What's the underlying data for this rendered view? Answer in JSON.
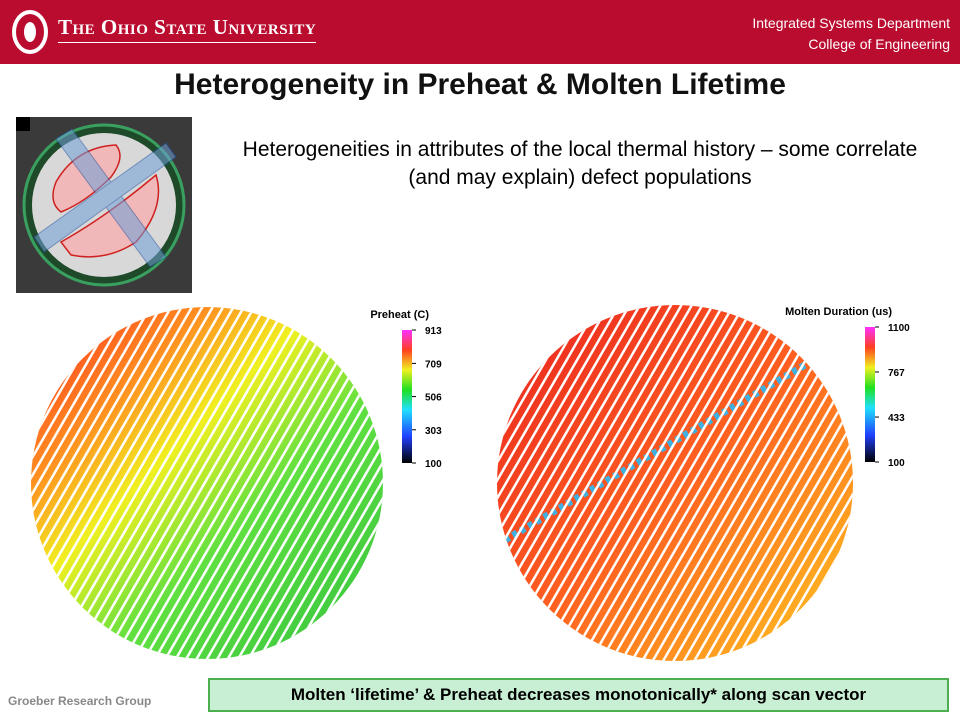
{
  "header": {
    "university": "The Ohio State University",
    "department": "Integrated Systems Department",
    "college": "College of Engineering"
  },
  "title": "Heterogeneity in Preheat & Molten Lifetime",
  "subtitle": "Heterogeneities in attributes of the local thermal history – some correlate (and may explain) defect populations",
  "plots": [
    {
      "legend_title": "Preheat (C)",
      "ticks": [
        913,
        709,
        506,
        303,
        100
      ]
    },
    {
      "legend_title": "Molten Duration (us)",
      "ticks": [
        1100,
        767,
        433,
        100
      ]
    }
  ],
  "footer": "Groeber Research Group",
  "callout": "Molten ‘lifetime’ & Preheat decreases monotonically*  along scan vector"
}
